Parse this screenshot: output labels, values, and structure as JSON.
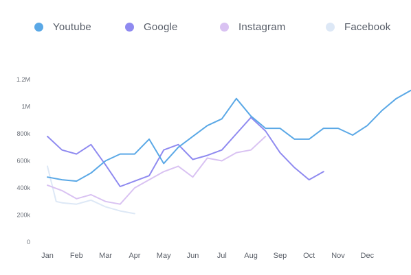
{
  "chart_data": {
    "type": "line",
    "categories": [
      "Jan",
      "Feb",
      "Mar",
      "Apr",
      "May",
      "Jun",
      "Jul",
      "Aug",
      "Sep",
      "Oct",
      "Nov",
      "Dec"
    ],
    "y_ticks": [
      "0",
      "200k",
      "400k",
      "600k",
      "800k",
      "1M",
      "1.2M"
    ],
    "ylim": [
      0,
      1200000
    ],
    "grid": false,
    "legend_position": "top",
    "series": [
      {
        "name": "Youtube",
        "color": "#5aa8e6",
        "points": [
          [
            0.0,
            480000
          ],
          [
            0.5,
            460000
          ],
          [
            1.0,
            450000
          ],
          [
            1.5,
            510000
          ],
          [
            2.0,
            600000
          ],
          [
            2.5,
            650000
          ],
          [
            3.0,
            650000
          ],
          [
            3.5,
            760000
          ],
          [
            4.0,
            580000
          ],
          [
            4.5,
            700000
          ],
          [
            5.0,
            780000
          ],
          [
            5.5,
            860000
          ],
          [
            6.0,
            910000
          ],
          [
            6.5,
            1060000
          ],
          [
            7.0,
            930000
          ],
          [
            7.5,
            840000
          ],
          [
            8.0,
            840000
          ],
          [
            8.5,
            760000
          ],
          [
            9.0,
            760000
          ],
          [
            9.5,
            840000
          ],
          [
            10.0,
            840000
          ],
          [
            10.5,
            790000
          ],
          [
            11.0,
            860000
          ],
          [
            11.5,
            970000
          ],
          [
            12.0,
            1060000
          ],
          [
            12.5,
            1120000
          ],
          [
            13.0,
            1100000
          ],
          [
            13.5,
            1060000
          ],
          [
            14.0,
            1140000
          ]
        ]
      },
      {
        "name": "Google",
        "color": "#8f8af0",
        "points": [
          [
            0.0,
            780000
          ],
          [
            0.5,
            680000
          ],
          [
            1.0,
            650000
          ],
          [
            1.5,
            720000
          ],
          [
            2.0,
            570000
          ],
          [
            2.5,
            410000
          ],
          [
            3.0,
            450000
          ],
          [
            3.5,
            490000
          ],
          [
            4.0,
            680000
          ],
          [
            4.5,
            720000
          ],
          [
            5.0,
            610000
          ],
          [
            5.5,
            640000
          ],
          [
            6.0,
            680000
          ],
          [
            6.5,
            800000
          ],
          [
            7.0,
            920000
          ],
          [
            7.5,
            820000
          ],
          [
            8.0,
            660000
          ],
          [
            8.5,
            550000
          ],
          [
            9.0,
            460000
          ],
          [
            9.5,
            520000
          ]
        ]
      },
      {
        "name": "Instagram",
        "color": "#d9c2f2",
        "points": [
          [
            0.0,
            420000
          ],
          [
            0.5,
            380000
          ],
          [
            1.0,
            320000
          ],
          [
            1.5,
            350000
          ],
          [
            2.0,
            300000
          ],
          [
            2.5,
            280000
          ],
          [
            3.0,
            400000
          ],
          [
            3.5,
            460000
          ],
          [
            4.0,
            520000
          ],
          [
            4.5,
            560000
          ],
          [
            5.0,
            480000
          ],
          [
            5.5,
            620000
          ],
          [
            6.0,
            600000
          ],
          [
            6.5,
            660000
          ],
          [
            7.0,
            680000
          ],
          [
            7.5,
            780000
          ]
        ]
      },
      {
        "name": "Facebook",
        "color": "#dde8f6",
        "points": [
          [
            0.0,
            560000
          ],
          [
            0.3,
            300000
          ],
          [
            0.5,
            290000
          ],
          [
            1.0,
            280000
          ],
          [
            1.5,
            310000
          ],
          [
            2.0,
            260000
          ],
          [
            2.5,
            230000
          ],
          [
            3.0,
            210000
          ]
        ]
      }
    ]
  }
}
